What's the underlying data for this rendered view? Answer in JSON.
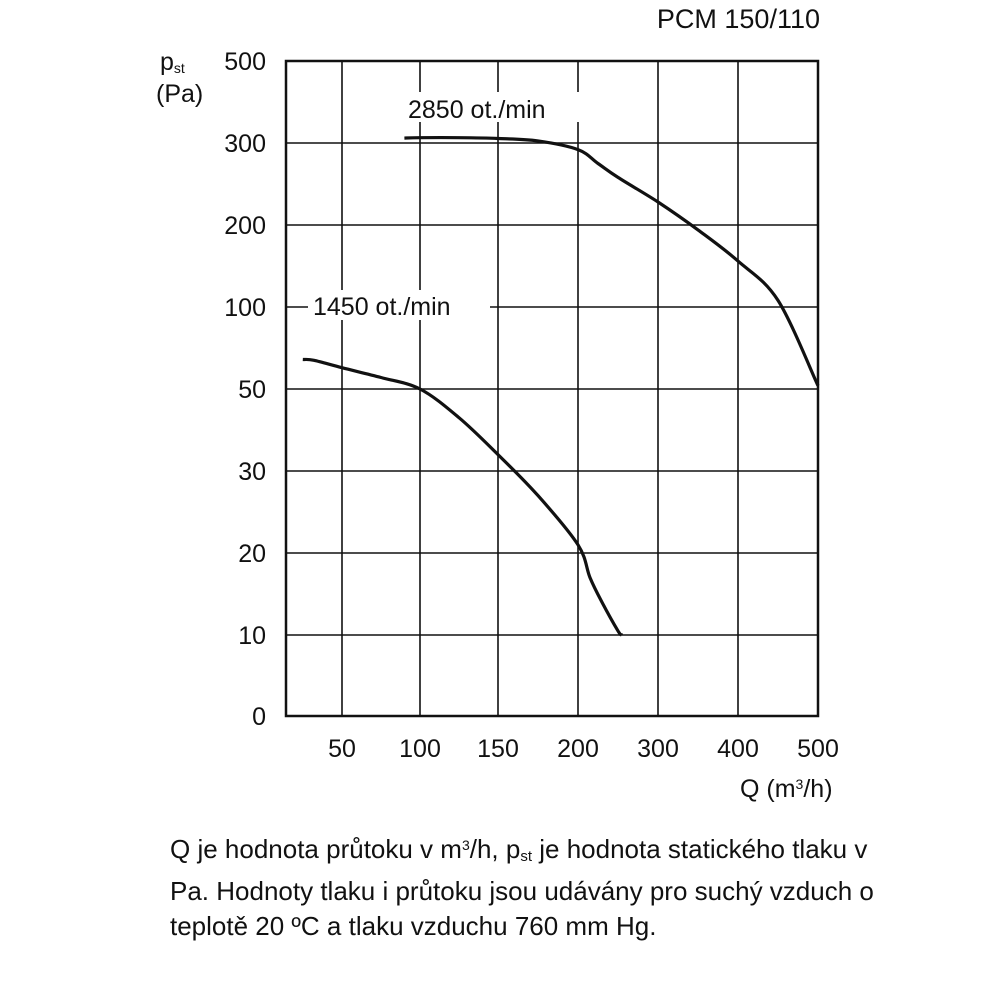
{
  "chart_data": {
    "type": "line",
    "title": "PCM 150/110",
    "ylabel": {
      "symbol": "p",
      "subscript": "st",
      "unit": "(Pa)"
    },
    "xlabel": {
      "text": "Q (m",
      "sup": "3",
      "rest": "/h)"
    },
    "x_ticks": [
      "50",
      "100",
      "150",
      "200",
      "300",
      "400",
      "500"
    ],
    "y_ticks": [
      "0",
      "10",
      "20",
      "30",
      "50",
      "100",
      "200",
      "300",
      "500"
    ],
    "grid": true,
    "series": [
      {
        "name": "2850 ot./min",
        "x": [
          90,
          100,
          125,
          150,
          175,
          200,
          225,
          250,
          300,
          350,
          400,
          450,
          500
        ],
        "y": [
          312,
          313,
          313,
          311,
          305,
          292,
          275,
          258,
          228,
          194,
          156,
          108,
          52
        ]
      },
      {
        "name": "1450 ot./min",
        "x": [
          15,
          25,
          50,
          75,
          100,
          125,
          150,
          175,
          200,
          215,
          230,
          250,
          255
        ],
        "y": [
          68,
          67.5,
          63,
          57,
          50,
          43,
          34,
          27,
          21,
          17,
          14,
          10.5,
          10
        ]
      }
    ]
  },
  "caption": {
    "p1": "Q je hodnota průtoku v m",
    "p1sup": "3",
    "p2": "/h, p",
    "p2sub": "st",
    "p3": " je hodnota statického tlaku v Pa. Hodnoty tlaku i průtoku jsou udávány pro suchý vzduch o teplotě 20 ºC a tlaku vzduchu 760 mm Hg."
  }
}
